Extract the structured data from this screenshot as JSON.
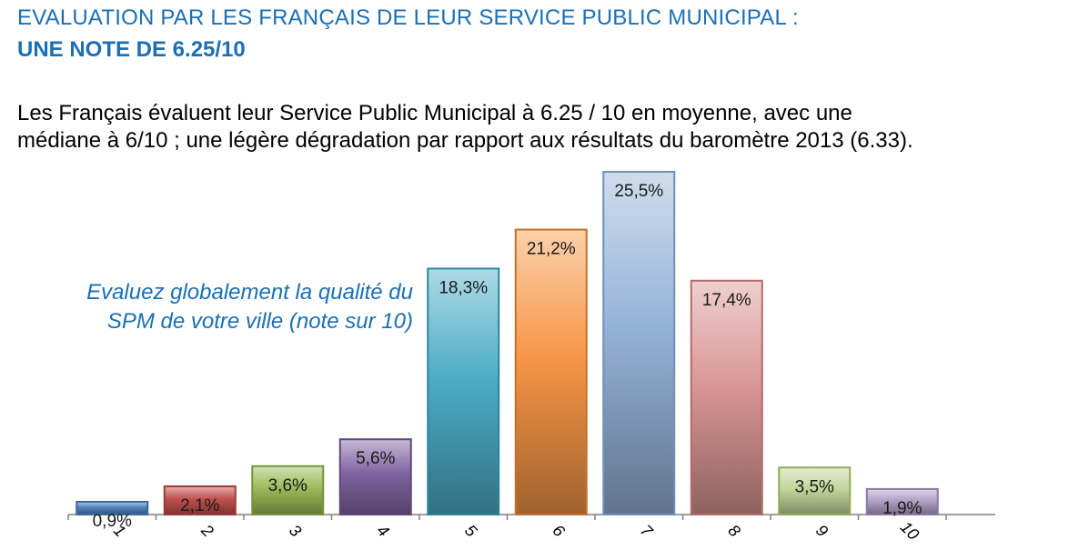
{
  "header": {
    "title_line1": "EVALUATION PAR LES FRANÇAIS DE LEUR SERVICE PUBLIC MUNICIPAL :",
    "title_line2": "UNE NOTE DE 6.25/10"
  },
  "intro": {
    "line1": "Les Français évaluent leur Service Public Municipal à 6.25 / 10 en moyenne, avec une",
    "line2": "médiane à 6/10 ; une légère dégradation par rapport aux résultats du baromètre 2013 (6.33)."
  },
  "question": {
    "line1": "Evaluez globalement la qualité du",
    "line2": "SPM de votre ville (note sur 10)"
  },
  "chart_data": {
    "type": "bar",
    "categories": [
      "1",
      "2",
      "3",
      "4",
      "5",
      "6",
      "7",
      "8",
      "9",
      "10"
    ],
    "values": [
      0.9,
      2.1,
      3.6,
      5.6,
      18.3,
      21.2,
      25.5,
      17.4,
      3.5,
      1.9
    ],
    "labels": [
      "0,9%",
      "2,1%",
      "3,6%",
      "5,6%",
      "18,3%",
      "21,2%",
      "25,5%",
      "17,4%",
      "3,5%",
      "1,9%"
    ],
    "unit": "%",
    "ylim": [
      0,
      25.5
    ],
    "grid": false,
    "legend": "none",
    "colors": [
      "#4e81bd",
      "#c0504d",
      "#9bbb59",
      "#8064a2",
      "#4bacc6",
      "#f79646",
      "#95b3d7",
      "#d99694",
      "#c3d69b",
      "#b3a2c7"
    ],
    "border_colors": [
      "#3b6aa0",
      "#9c3a37",
      "#76933c",
      "#5f497a",
      "#31859c",
      "#c0722a",
      "#6f8fba",
      "#b36b69",
      "#8ead58",
      "#8a78a6"
    ]
  }
}
